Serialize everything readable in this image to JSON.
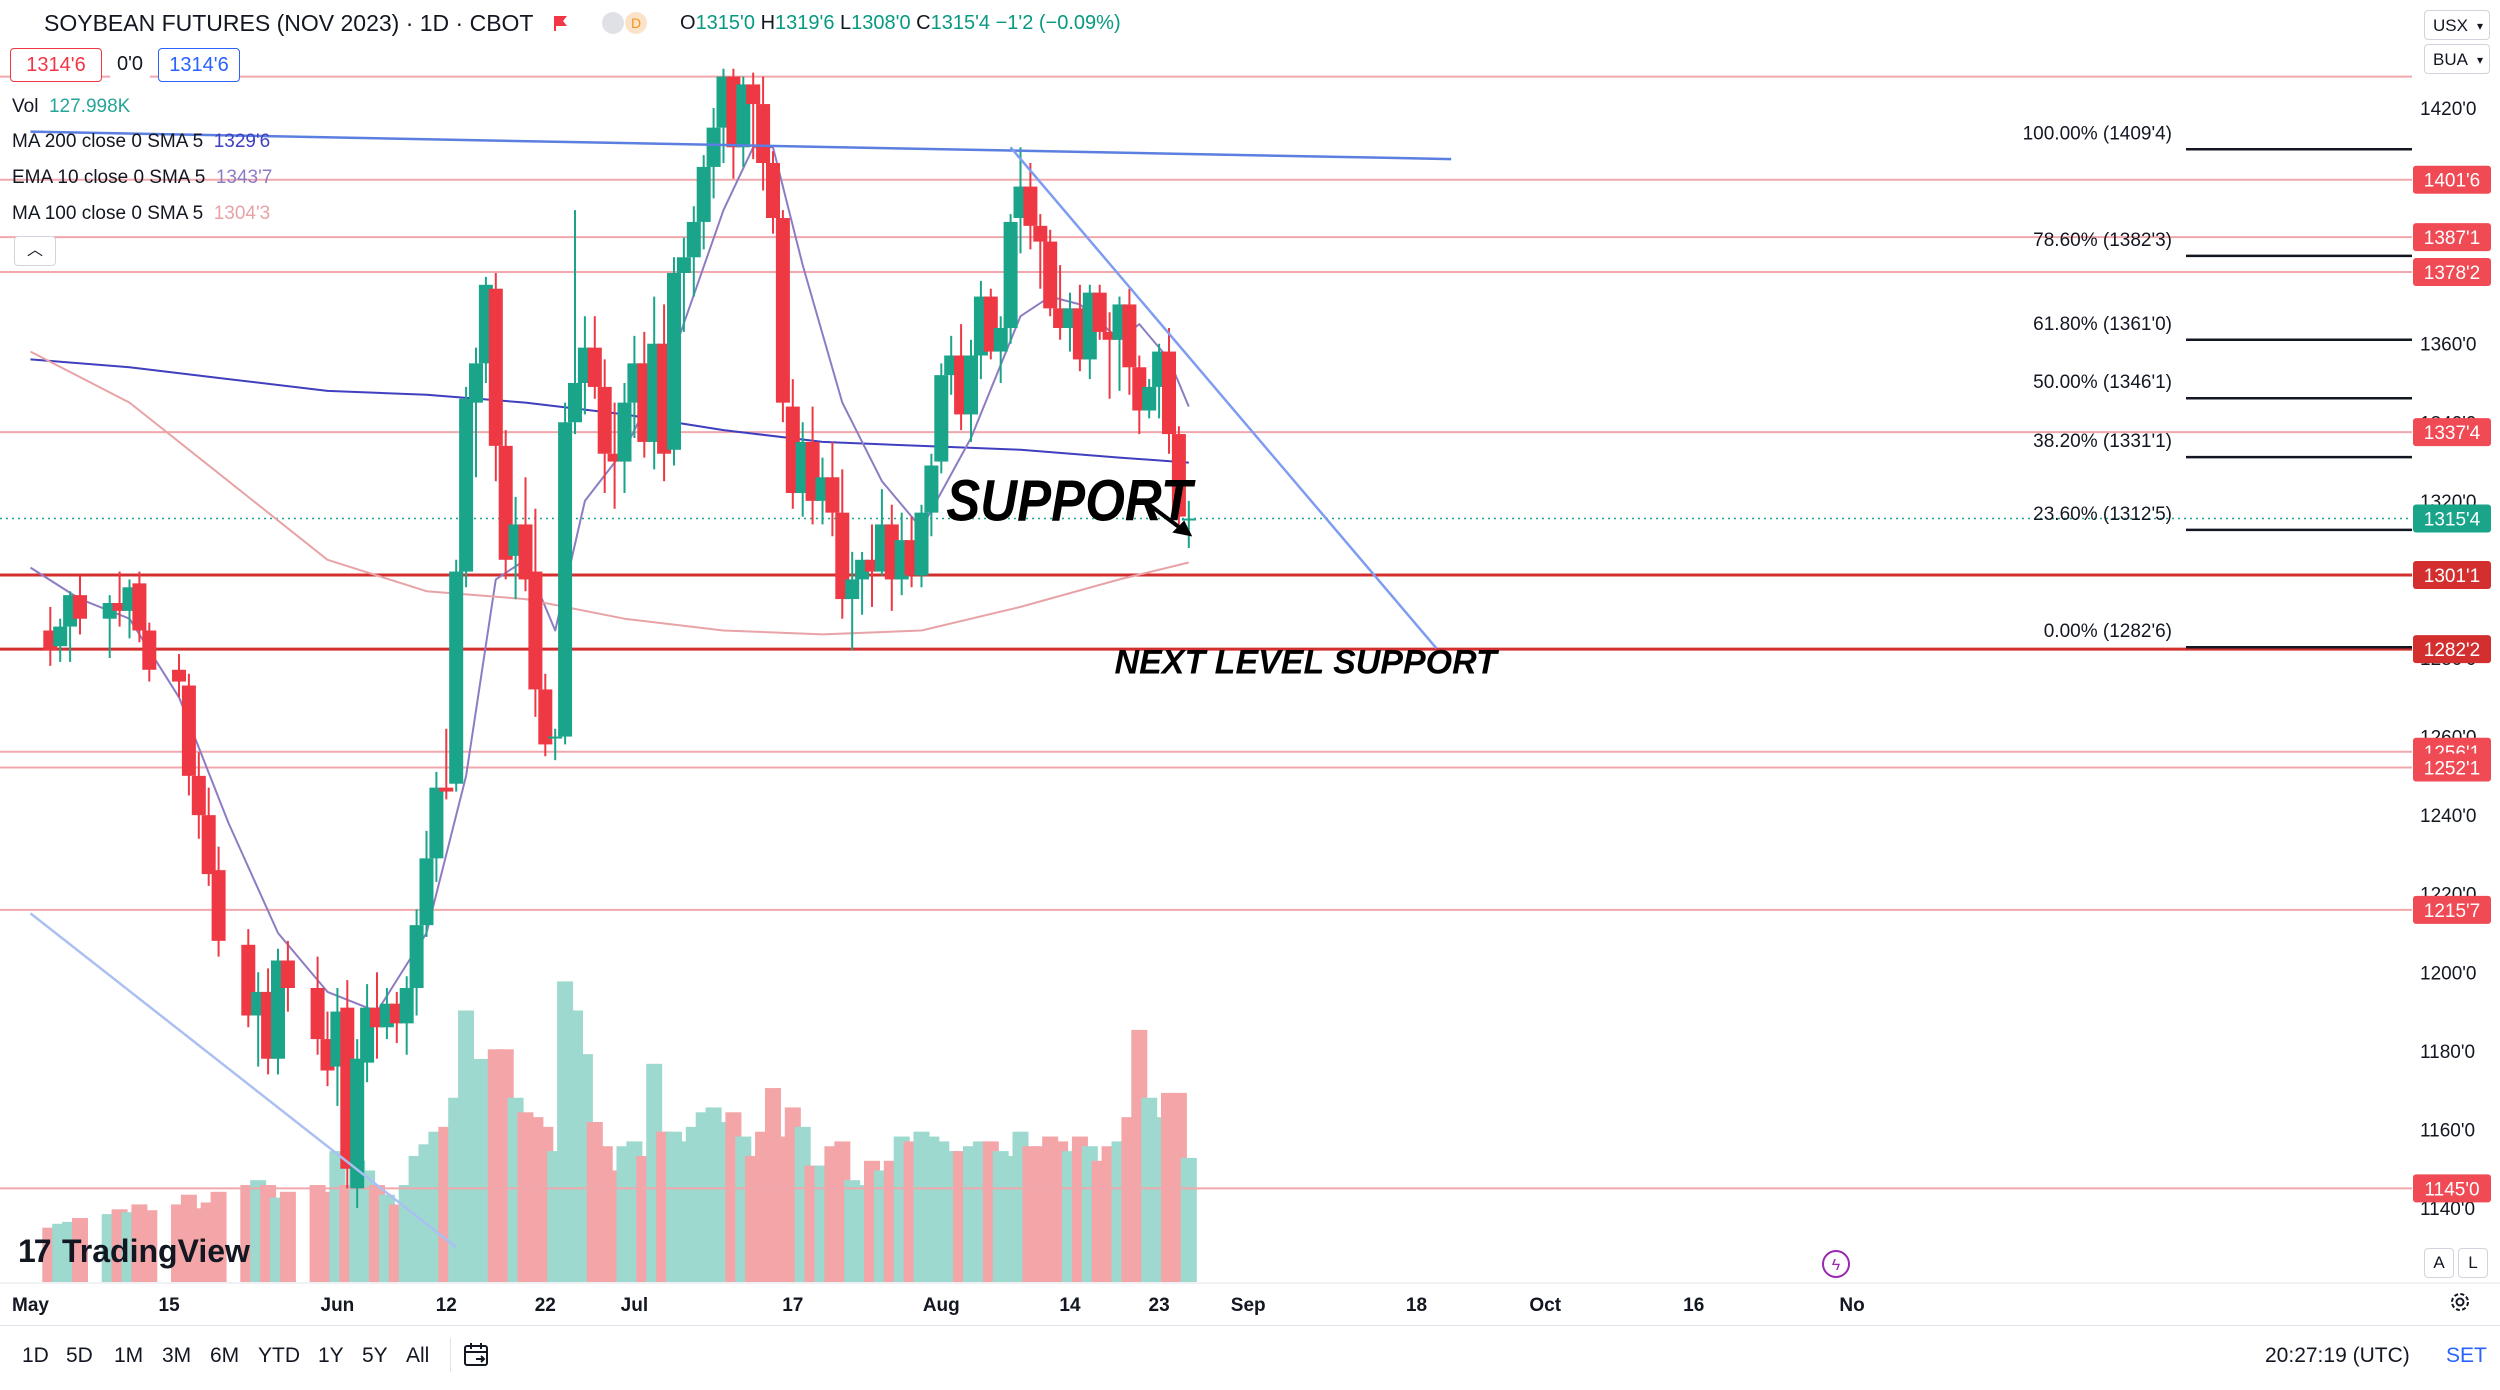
{
  "header": {
    "title": "SOYBEAN FUTURES (NOV 2023) · 1D · CBOT",
    "badge_letter": "D",
    "ohlc": {
      "open_label": "O",
      "open": "1315'0",
      "high_label": "H",
      "high": "1319'6",
      "low_label": "L",
      "low": "1308'0",
      "close_label": "C",
      "close": "1315'4",
      "change": "−1'2 (−0.09%)"
    },
    "bid": "1314'6",
    "spread": "0'0",
    "ask": "1314'6"
  },
  "indicators": [
    {
      "name": "Vol",
      "value": "127.998K",
      "color": "#26a69a"
    },
    {
      "name": "MA 200 close 0 SMA 5",
      "value": "1329'6",
      "color": "#3f3fbf"
    },
    {
      "name": "EMA 10 close 0 SMA 5",
      "value": "1343'7",
      "color": "#8e7cc3"
    },
    {
      "name": "MA 100 close 0 SMA 5",
      "value": "1304'3",
      "color": "#e8a3a6"
    }
  ],
  "scale_controls": {
    "currency": "USX",
    "unit": "BUA"
  },
  "logo_text": "TradingView",
  "chart_buttons": {
    "auto": "A",
    "log": "L"
  },
  "bottom_bar": {
    "ranges": [
      "1D",
      "5D",
      "1M",
      "3M",
      "6M",
      "YTD",
      "1Y",
      "5Y",
      "All"
    ],
    "clock": "20:27:19 (UTC)",
    "set_label": "SET"
  },
  "chart_data": {
    "type": "candlestick",
    "instrument": "SOYBEAN FUTURES (NOV 2023)",
    "interval": "1D",
    "exchange": "CBOT",
    "price_unit": "cents (1/8 fractions shown as 'N)",
    "ylim": [
      1130,
      1432
    ],
    "y_ticks": [
      1140,
      1160,
      1180,
      1200,
      1220,
      1240,
      1260,
      1280,
      1300,
      1320,
      1340,
      1360,
      1380,
      1400,
      1420
    ],
    "y_tick_labels": [
      "1140'0",
      "1160'0",
      "1180'0",
      "1200'0",
      "1220'0",
      "1240'0",
      "1260'0",
      "1280'0",
      "1300'0",
      "1320'0",
      "1340'0",
      "1360'0",
      "1380'0",
      "1400'0",
      "1420'0"
    ],
    "x_labels": [
      {
        "label": "May",
        "day": 0
      },
      {
        "label": "15",
        "day": 14
      },
      {
        "label": "Jun",
        "day": 31
      },
      {
        "label": "12",
        "day": 42
      },
      {
        "label": "22",
        "day": 52
      },
      {
        "label": "Jul",
        "day": 61
      },
      {
        "label": "17",
        "day": 77
      },
      {
        "label": "Aug",
        "day": 92
      },
      {
        "label": "14",
        "day": 105
      },
      {
        "label": "23",
        "day": 114
      },
      {
        "label": "Sep",
        "day": 123
      },
      {
        "label": "18",
        "day": 140
      },
      {
        "label": "Oct",
        "day": 153
      },
      {
        "label": "16",
        "day": 168
      },
      {
        "label": "No",
        "day": 184
      }
    ],
    "candles": [
      [
        2,
        1287,
        1293,
        1278,
        1282,
        560
      ],
      [
        3,
        1283,
        1290,
        1279,
        1288,
        600
      ],
      [
        4,
        1288,
        1297,
        1279,
        1296,
        620
      ],
      [
        5,
        1296,
        1301,
        1286,
        1290,
        660
      ],
      [
        8,
        1290,
        1296,
        1280,
        1294,
        700
      ],
      [
        9,
        1294,
        1302,
        1288,
        1292,
        750
      ],
      [
        10,
        1292,
        1300,
        1285,
        1298,
        720
      ],
      [
        11,
        1299,
        1302,
        1284,
        1287,
        800
      ],
      [
        12,
        1287,
        1289,
        1274,
        1277,
        740
      ],
      [
        15,
        1277,
        1281,
        1270,
        1274,
        800
      ],
      [
        16,
        1273,
        1276,
        1245,
        1250,
        900
      ],
      [
        17,
        1250,
        1256,
        1234,
        1240,
        760
      ],
      [
        18,
        1240,
        1247,
        1222,
        1225,
        820
      ],
      [
        19,
        1226,
        1232,
        1204,
        1208,
        930
      ],
      [
        22,
        1207,
        1211,
        1186,
        1189,
        1000
      ],
      [
        23,
        1189,
        1200,
        1176,
        1195,
        1050
      ],
      [
        24,
        1195,
        1201,
        1174,
        1178,
        1000
      ],
      [
        25,
        1178,
        1206,
        1174,
        1203,
        870
      ],
      [
        26,
        1203,
        1208,
        1190,
        1196,
        930
      ],
      [
        29,
        1196,
        1204,
        1179,
        1183,
        1000
      ],
      [
        30,
        1183,
        1190,
        1171,
        1175,
        930
      ],
      [
        31,
        1176,
        1196,
        1166,
        1190,
        1350
      ],
      [
        32,
        1191,
        1198,
        1145,
        1150,
        1000
      ],
      [
        33,
        1145,
        1183,
        1140,
        1178,
        1250
      ],
      [
        34,
        1177,
        1197,
        1172,
        1191,
        1150
      ],
      [
        35,
        1191,
        1200,
        1178,
        1186,
        1000
      ],
      [
        36,
        1186,
        1196,
        1183,
        1192,
        900
      ],
      [
        37,
        1192,
        1195,
        1182,
        1187,
        800
      ],
      [
        38,
        1187,
        1199,
        1179,
        1196,
        1000
      ],
      [
        39,
        1196,
        1216,
        1189,
        1212,
        1300
      ],
      [
        40,
        1212,
        1236,
        1209,
        1229,
        1420
      ],
      [
        41,
        1229,
        1251,
        1223,
        1247,
        1550
      ],
      [
        42,
        1247,
        1262,
        1244,
        1246,
        1600
      ],
      [
        43,
        1248,
        1305,
        1246,
        1302,
        1900
      ],
      [
        44,
        1302,
        1349,
        1298,
        1346,
        2800
      ],
      [
        45,
        1345,
        1359,
        1326,
        1355,
        2300
      ],
      [
        46,
        1355,
        1377,
        1350,
        1375,
        2300
      ],
      [
        47,
        1374,
        1378,
        1325,
        1334,
        2400
      ],
      [
        48,
        1334,
        1338,
        1300,
        1305,
        2400
      ],
      [
        49,
        1306,
        1321,
        1295,
        1314,
        1900
      ],
      [
        50,
        1314,
        1326,
        1297,
        1300,
        1750
      ],
      [
        51,
        1302,
        1318,
        1265,
        1272,
        1700
      ],
      [
        52,
        1272,
        1276,
        1255,
        1258,
        1600
      ],
      [
        53,
        1260,
        1262,
        1254,
        1260,
        1350
      ],
      [
        54,
        1260,
        1345,
        1258,
        1340,
        3100
      ],
      [
        55,
        1340,
        1394,
        1337,
        1350,
        2800
      ],
      [
        56,
        1350,
        1367,
        1342,
        1359,
        2350
      ],
      [
        57,
        1359,
        1367,
        1346,
        1349,
        1650
      ],
      [
        58,
        1349,
        1356,
        1322,
        1332,
        1400
      ],
      [
        59,
        1332,
        1345,
        1318,
        1330,
        1150
      ],
      [
        60,
        1330,
        1350,
        1322,
        1345,
        1400
      ],
      [
        61,
        1345,
        1362,
        1336,
        1355,
        1450
      ],
      [
        62,
        1355,
        1363,
        1331,
        1335,
        1300
      ],
      [
        63,
        1335,
        1372,
        1328,
        1360,
        2250
      ],
      [
        64,
        1360,
        1370,
        1325,
        1332,
        1550
      ],
      [
        65,
        1333,
        1382,
        1329,
        1378,
        1550
      ],
      [
        66,
        1378,
        1387,
        1363,
        1382,
        1450
      ],
      [
        67,
        1382,
        1395,
        1372,
        1391,
        1600
      ],
      [
        68,
        1391,
        1408,
        1384,
        1405,
        1750
      ],
      [
        69,
        1405,
        1420,
        1397,
        1415,
        1800
      ],
      [
        70,
        1415,
        1430,
        1406,
        1428,
        1650
      ],
      [
        71,
        1428,
        1430,
        1402,
        1410,
        1750
      ],
      [
        72,
        1410,
        1428,
        1405,
        1426,
        1500
      ],
      [
        73,
        1426,
        1429,
        1407,
        1421,
        1300
      ],
      [
        74,
        1421,
        1428,
        1399,
        1406,
        1550
      ],
      [
        75,
        1406,
        1409,
        1388,
        1392,
        2000
      ],
      [
        76,
        1392,
        1394,
        1340,
        1345,
        1500
      ],
      [
        77,
        1344,
        1351,
        1318,
        1322,
        1800
      ],
      [
        78,
        1322,
        1340,
        1316,
        1335,
        1600
      ],
      [
        79,
        1335,
        1344,
        1314,
        1320,
        1200
      ],
      [
        80,
        1320,
        1331,
        1314,
        1326,
        1200
      ],
      [
        81,
        1326,
        1335,
        1311,
        1317,
        1400
      ],
      [
        82,
        1317,
        1328,
        1290,
        1295,
        1450
      ],
      [
        83,
        1295,
        1307,
        1282,
        1300,
        1050
      ],
      [
        84,
        1300,
        1307,
        1291,
        1305,
        1000
      ],
      [
        85,
        1305,
        1314,
        1293,
        1302,
        1250
      ],
      [
        86,
        1302,
        1323,
        1301,
        1314,
        1150
      ],
      [
        87,
        1314,
        1319,
        1292,
        1300,
        1250
      ],
      [
        88,
        1300,
        1317,
        1296,
        1310,
        1500
      ],
      [
        89,
        1310,
        1316,
        1298,
        1301,
        1450
      ],
      [
        90,
        1301,
        1319,
        1298,
        1317,
        1550
      ],
      [
        91,
        1317,
        1332,
        1311,
        1329,
        1500
      ],
      [
        92,
        1330,
        1355,
        1327,
        1352,
        1450
      ],
      [
        93,
        1352,
        1362,
        1347,
        1357,
        1350
      ],
      [
        94,
        1357,
        1365,
        1338,
        1342,
        1350
      ],
      [
        95,
        1342,
        1361,
        1335,
        1357,
        1400
      ],
      [
        96,
        1357,
        1376,
        1351,
        1372,
        1450
      ],
      [
        97,
        1372,
        1374,
        1356,
        1358,
        1450
      ],
      [
        98,
        1358,
        1367,
        1350,
        1364,
        1350
      ],
      [
        99,
        1364,
        1393,
        1360,
        1391,
        1300
      ],
      [
        100,
        1392,
        1410,
        1383,
        1400,
        1550
      ],
      [
        101,
        1400,
        1406,
        1384,
        1390,
        1400
      ],
      [
        102,
        1390,
        1393,
        1374,
        1386,
        1400
      ],
      [
        103,
        1386,
        1389,
        1367,
        1369,
        1500
      ],
      [
        104,
        1369,
        1380,
        1361,
        1364,
        1450
      ],
      [
        105,
        1364,
        1373,
        1358,
        1369,
        1350
      ],
      [
        106,
        1369,
        1375,
        1353,
        1356,
        1500
      ],
      [
        107,
        1356,
        1375,
        1351,
        1373,
        1400
      ],
      [
        108,
        1373,
        1375,
        1361,
        1363,
        1250
      ],
      [
        109,
        1363,
        1368,
        1346,
        1361,
        1400
      ],
      [
        110,
        1361,
        1372,
        1348,
        1370,
        1450
      ],
      [
        111,
        1370,
        1374,
        1347,
        1354,
        1700
      ],
      [
        112,
        1354,
        1357,
        1337,
        1343,
        2600
      ],
      [
        113,
        1343,
        1351,
        1341,
        1349,
        1900
      ],
      [
        114,
        1349,
        1360,
        1341,
        1358,
        1700
      ],
      [
        115,
        1358,
        1364,
        1332,
        1337,
        1950
      ],
      [
        116,
        1337,
        1339,
        1314,
        1316,
        1950
      ],
      [
        117,
        1315,
        1320,
        1308,
        1315.5,
        1280
      ]
    ],
    "volume_scale_max": 3300,
    "series": [
      {
        "name": "MA 200 close 0 SMA 5",
        "color": "#3f3fbf",
        "points": [
          [
            0,
            1356
          ],
          [
            10,
            1354
          ],
          [
            20,
            1351
          ],
          [
            30,
            1348
          ],
          [
            40,
            1347
          ],
          [
            50,
            1345
          ],
          [
            60,
            1342
          ],
          [
            70,
            1338
          ],
          [
            80,
            1335
          ],
          [
            90,
            1334
          ],
          [
            100,
            1333
          ],
          [
            110,
            1331
          ],
          [
            117,
            1329.75
          ]
        ]
      },
      {
        "name": "EMA 10 close 0 SMA 5",
        "color": "#8e7cc3",
        "points": [
          [
            0,
            1303
          ],
          [
            5,
            1295
          ],
          [
            10,
            1290
          ],
          [
            15,
            1270
          ],
          [
            20,
            1238
          ],
          [
            25,
            1210
          ],
          [
            30,
            1195
          ],
          [
            35,
            1190
          ],
          [
            40,
            1210
          ],
          [
            44,
            1250
          ],
          [
            47,
            1300
          ],
          [
            50,
            1305
          ],
          [
            53,
            1287
          ],
          [
            56,
            1320
          ],
          [
            60,
            1333
          ],
          [
            65,
            1358
          ],
          [
            70,
            1394
          ],
          [
            73,
            1410
          ],
          [
            75,
            1410
          ],
          [
            78,
            1380
          ],
          [
            82,
            1345
          ],
          [
            86,
            1325
          ],
          [
            90,
            1313
          ],
          [
            95,
            1336
          ],
          [
            100,
            1367
          ],
          [
            103,
            1372
          ],
          [
            106,
            1370
          ],
          [
            110,
            1361
          ],
          [
            112,
            1365
          ],
          [
            115,
            1356
          ],
          [
            117,
            1344
          ]
        ]
      },
      {
        "name": "MA 100 close 0 SMA 5",
        "color": "#e8a3a6",
        "points": [
          [
            0,
            1358
          ],
          [
            10,
            1345
          ],
          [
            20,
            1325
          ],
          [
            30,
            1305
          ],
          [
            40,
            1297
          ],
          [
            50,
            1295
          ],
          [
            60,
            1290
          ],
          [
            70,
            1287
          ],
          [
            80,
            1286
          ],
          [
            90,
            1287
          ],
          [
            100,
            1293
          ],
          [
            110,
            1300
          ],
          [
            117,
            1304.3
          ]
        ]
      }
    ],
    "horizontal_levels": [
      {
        "price": 1428,
        "label": null,
        "color": "#f1a8ad"
      },
      {
        "price": 1401.75,
        "label": "1401'6",
        "color": "#f1a8ad"
      },
      {
        "price": 1387.125,
        "label": "1387'1",
        "color": "#f1a8ad"
      },
      {
        "price": 1378.25,
        "label": "1378'2",
        "color": "#f1a8ad"
      },
      {
        "price": 1337.5,
        "label": "1337'4",
        "color": "#f1a8ad"
      },
      {
        "price": 1301.125,
        "label": "1301'1",
        "color": "#d32f2f"
      },
      {
        "price": 1282.25,
        "label": "1282'2",
        "color": "#d32f2f"
      },
      {
        "price": 1256.125,
        "label": "1256'1",
        "color": "#f1a8ad"
      },
      {
        "price": 1252.125,
        "label": "1252'1",
        "color": "#f1a8ad"
      },
      {
        "price": 1215.875,
        "label": "1215'7",
        "color": "#f1a8ad"
      },
      {
        "price": 1145,
        "label": "1145'0",
        "color": "#f1a8ad"
      }
    ],
    "current_price": {
      "price": 1315.5,
      "label": "1315'4"
    },
    "fibonacci": [
      {
        "label": "100.00% (1409'4)",
        "price": 1409.5
      },
      {
        "label": "78.60% (1382'3)",
        "price": 1382.375
      },
      {
        "label": "61.80% (1361'0)",
        "price": 1361
      },
      {
        "label": "50.00% (1346'1)",
        "price": 1346.125
      },
      {
        "label": "38.20% (1331'1)",
        "price": 1331.125
      },
      {
        "label": "23.60% (1312'5)",
        "price": 1312.625
      },
      {
        "label": "0.00% (1282'6)",
        "price": 1282.75
      }
    ],
    "trendlines": [
      {
        "points": [
          [
            0,
            1414
          ],
          [
            143.5,
            1407
          ]
        ],
        "color": "#5b7fe0"
      },
      {
        "points": [
          [
            99,
            1410
          ],
          [
            142,
            1282.5
          ]
        ],
        "color": "#7e9cf0"
      },
      {
        "points": [
          [
            0,
            1215
          ],
          [
            43,
            1130
          ]
        ],
        "color": "#aac0f2"
      }
    ],
    "annotations": [
      {
        "text": "SUPPORT",
        "day": 92.5,
        "price": 1315
      },
      {
        "text": "NEXT LEVEL SUPPORT",
        "day": 109.5,
        "price": 1276
      }
    ],
    "colors": {
      "up": "#1aa58a",
      "down": "#ee3844",
      "vol_up": "#9dd9cf",
      "vol_down": "#f3a5a8"
    }
  }
}
